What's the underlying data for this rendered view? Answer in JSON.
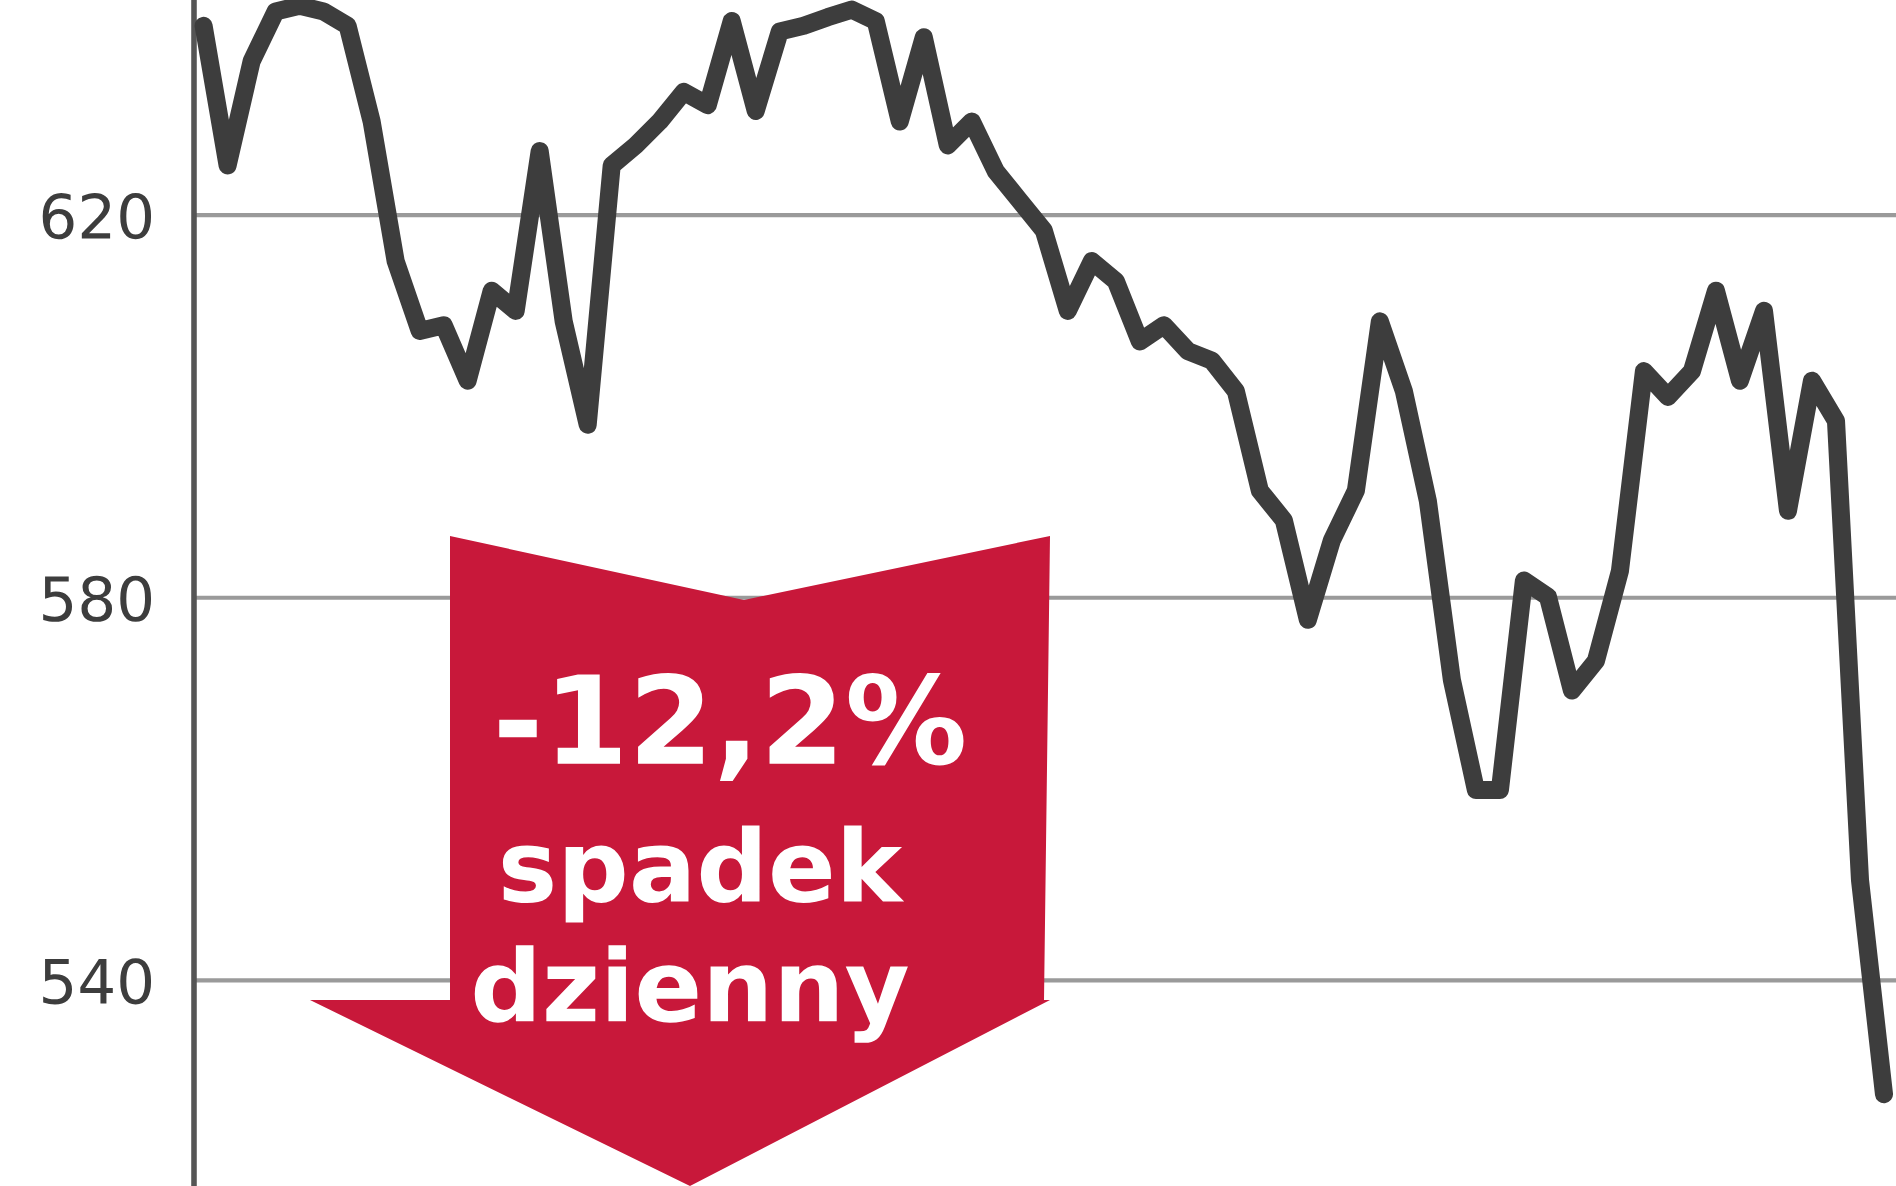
{
  "chart_data": {
    "type": "line",
    "categories": [
      null,
      null,
      null,
      null,
      null,
      null,
      null,
      null,
      null,
      null,
      null,
      null,
      null,
      null,
      null,
      null,
      null,
      null,
      null,
      null,
      null,
      null,
      null,
      null,
      null,
      null,
      null,
      null,
      null,
      null,
      null,
      null,
      null,
      null,
      null,
      null,
      null,
      null,
      null,
      null,
      null,
      null,
      null,
      null,
      null,
      null,
      null,
      null,
      null,
      null,
      null,
      null,
      null,
      null,
      null,
      null,
      null,
      null,
      null,
      null,
      null,
      null,
      null,
      null,
      null,
      null,
      null,
      null,
      null,
      null,
      null
    ],
    "series": [
      {
        "color": "#3d3d3d",
        "values": [
          639.8,
          625.2,
          636.1,
          641.3,
          641.9,
          641.3,
          639.8,
          629.8,
          615.2,
          607.9,
          608.5,
          602.7,
          612.1,
          610.0,
          626.7,
          608.9,
          598.1,
          625.2,
          627.3,
          629.8,
          632.9,
          631.5,
          640.3,
          630.9,
          639.2,
          639.8,
          640.7,
          641.5,
          640.3,
          629.8,
          638.6,
          627.3,
          629.8,
          624.6,
          621.5,
          618.4,
          610.0,
          615.2,
          613.1,
          606.8,
          608.5,
          605.8,
          604.8,
          601.6,
          591.2,
          588.1,
          577.7,
          586.0,
          591.2,
          608.9,
          601.6,
          590.1,
          571.4,
          559.9,
          559.9,
          581.8,
          580.1,
          570.3,
          573.4,
          582.8,
          603.7,
          601.0,
          603.7,
          612.1,
          602.7,
          610.0,
          589.1,
          602.7,
          598.5,
          550.5,
          528.1
        ]
      }
    ],
    "ylim": [
      518.5,
      642.5
    ],
    "yticks": [
      540,
      580,
      620
    ],
    "grid": "y",
    "tick_labels": "y",
    "legend": false,
    "annotations": [
      "-12,2%",
      "spadek",
      "dzienny"
    ]
  }
}
